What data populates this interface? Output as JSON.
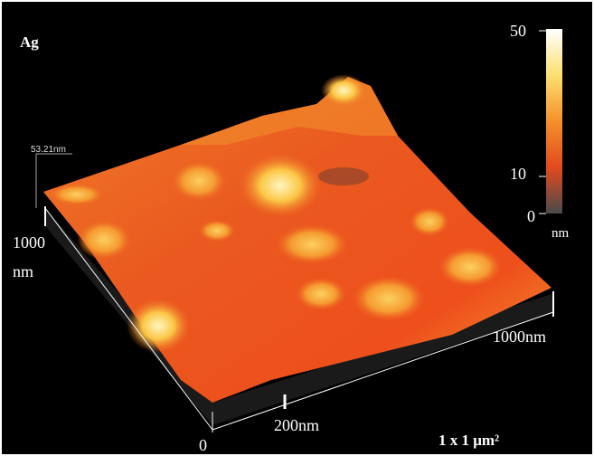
{
  "sample": "Ag",
  "colorbar": {
    "ticks": [
      "50",
      "10",
      "0"
    ],
    "unit": "nm"
  },
  "height_label": "53.21nm",
  "axes": {
    "y_max": "1000",
    "y_unit": "nm",
    "x_max": "1000nm",
    "x_mid": "200nm",
    "origin": "0"
  },
  "scan_size": "1 x 1 μm²"
}
